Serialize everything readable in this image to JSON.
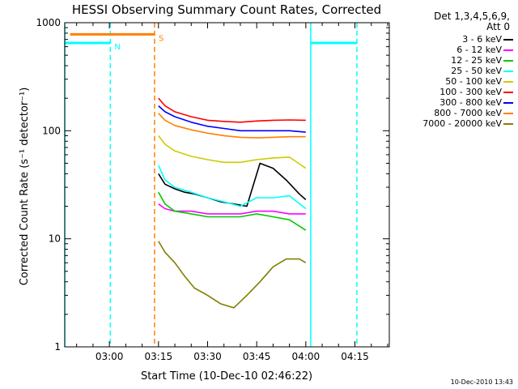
{
  "chart_data": {
    "type": "line",
    "title": "HESSI Observing Summary Count Rates, Corrected",
    "xlabel": "Start Time (10-Dec-10 02:46:22)",
    "ylabel": "Corrected Count Rate (s⁻¹ detector⁻¹)",
    "yscale": "log",
    "ylim": [
      1,
      1000
    ],
    "yticks": [
      "1",
      "10",
      "100",
      "1000"
    ],
    "xlim_minutes": [
      166.37,
      265.5
    ],
    "xticks": [
      {
        "label": "03:00",
        "minute": 180
      },
      {
        "label": "03:15",
        "minute": 195
      },
      {
        "label": "03:30",
        "minute": 210
      },
      {
        "label": "03:45",
        "minute": 225
      },
      {
        "label": "04:00",
        "minute": 240
      },
      {
        "label": "04:15",
        "minute": 255
      }
    ],
    "legend_header": [
      "Det 1,3,4,5,6,9,",
      "Att 0"
    ],
    "series": [
      {
        "name": "3 - 6 keV",
        "color": "#000000",
        "x": [
          195,
          197,
          200,
          203,
          206,
          210,
          214,
          218,
          222,
          226,
          230,
          234,
          238,
          240
        ],
        "y": [
          40,
          32,
          29,
          27,
          26,
          24,
          22,
          21,
          20,
          50,
          45,
          35,
          26,
          23
        ]
      },
      {
        "name": "6 - 12 keV",
        "color": "#ff00ff",
        "x": [
          195,
          197,
          200,
          205,
          210,
          215,
          220,
          225,
          230,
          235,
          240
        ],
        "y": [
          21,
          19,
          18,
          18,
          17,
          17,
          17,
          18,
          18,
          17,
          17
        ]
      },
      {
        "name": "12 - 25 keV",
        "color": "#00cc00",
        "x": [
          195,
          197,
          200,
          205,
          210,
          215,
          220,
          225,
          230,
          235,
          240
        ],
        "y": [
          27,
          21,
          18,
          17,
          16,
          16,
          16,
          17,
          16,
          15,
          12
        ]
      },
      {
        "name": "25 - 50 keV",
        "color": "#00ffff",
        "x": [
          195,
          197,
          200,
          205,
          210,
          215,
          220,
          225,
          230,
          235,
          240
        ],
        "y": [
          48,
          35,
          30,
          27,
          24,
          22,
          20,
          24,
          24,
          25,
          19
        ]
      },
      {
        "name": "50 - 100 keV",
        "color": "#cccc00",
        "x": [
          195,
          197,
          200,
          205,
          210,
          215,
          220,
          225,
          230,
          235,
          240
        ],
        "y": [
          90,
          75,
          65,
          58,
          54,
          51,
          51,
          54,
          56,
          57,
          45
        ]
      },
      {
        "name": "100 - 300 keV",
        "color": "#ff0000",
        "x": [
          195,
          197,
          200,
          205,
          210,
          215,
          220,
          225,
          230,
          235,
          240
        ],
        "y": [
          200,
          170,
          150,
          135,
          125,
          122,
          120,
          123,
          125,
          126,
          125
        ]
      },
      {
        "name": "300 - 800 keV",
        "color": "#0000ff",
        "x": [
          195,
          197,
          200,
          205,
          210,
          215,
          220,
          225,
          230,
          235,
          240
        ],
        "y": [
          170,
          150,
          135,
          120,
          110,
          105,
          100,
          100,
          100,
          100,
          97
        ]
      },
      {
        "name": "800 - 7000 keV",
        "color": "#ff8000",
        "x": [
          195,
          197,
          200,
          205,
          210,
          215,
          220,
          225,
          230,
          235,
          240
        ],
        "y": [
          145,
          125,
          112,
          102,
          95,
          90,
          87,
          86,
          87,
          88,
          88
        ]
      },
      {
        "name": "7000 - 20000 keV",
        "color": "#808000",
        "x": [
          195,
          197,
          200,
          203,
          206,
          210,
          214,
          218,
          222,
          226,
          230,
          234,
          238,
          240
        ],
        "y": [
          9.5,
          7.5,
          6,
          4.5,
          3.5,
          3,
          2.5,
          2.3,
          3,
          4,
          5.5,
          6.5,
          6.5,
          6
        ]
      }
    ],
    "state_bars": [
      {
        "flag": "N",
        "color": "#00ffff",
        "value": 650,
        "segments": [
          [
            166.37,
            180.3
          ],
          [
            241.5,
            255.6
          ]
        ],
        "marker_minute": 180.3
      },
      {
        "flag": "S",
        "color": "#ff8000",
        "value": 780,
        "segments": [
          [
            168,
            193.8
          ]
        ],
        "marker_minute": 193.8
      }
    ],
    "spans": [
      {
        "color": "#00ffff",
        "style": "solid",
        "minutes": [
          166.37,
          241.5
        ]
      },
      {
        "color": "#00ffff",
        "style": "dashed",
        "minutes": [
          180.3,
          255.6
        ]
      },
      {
        "color": "#ff8000",
        "style": "dashed",
        "minutes": [
          193.8
        ]
      }
    ]
  },
  "footer": {
    "timestamp": "10-Dec-2010 13:43"
  }
}
